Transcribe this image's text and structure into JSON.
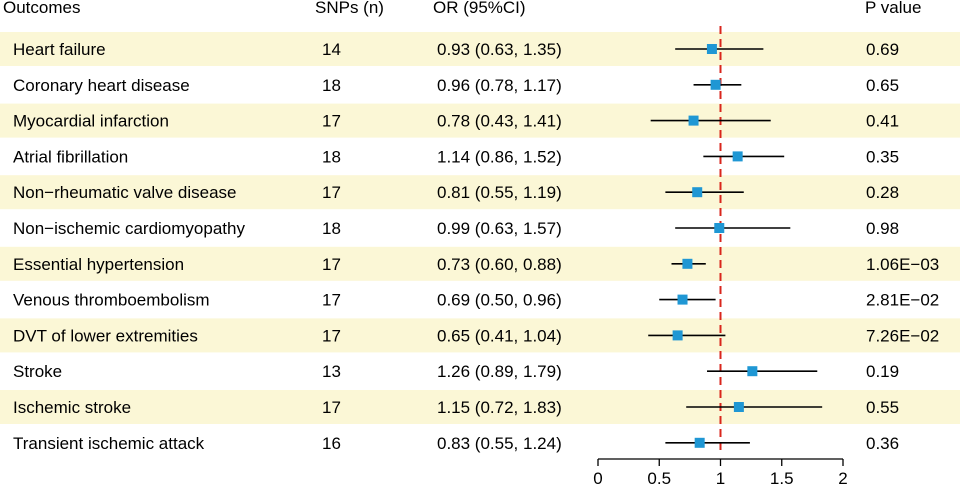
{
  "chart_data": {
    "type": "forest",
    "columns": {
      "outcome": "Outcomes",
      "snps": "SNPs (n)",
      "or_ci": "OR (95%CI)",
      "p_value": "P value"
    },
    "rows": [
      {
        "outcome": "Heart failure",
        "snps": "14",
        "or_ci": "0.93 (0.63, 1.35)",
        "p": "0.69",
        "or": 0.93,
        "lo": 0.63,
        "hi": 1.35
      },
      {
        "outcome": "Coronary heart disease",
        "snps": "18",
        "or_ci": "0.96 (0.78, 1.17)",
        "p": "0.65",
        "or": 0.96,
        "lo": 0.78,
        "hi": 1.17
      },
      {
        "outcome": "Myocardial infarction",
        "snps": "17",
        "or_ci": "0.78 (0.43, 1.41)",
        "p": "0.41",
        "or": 0.78,
        "lo": 0.43,
        "hi": 1.41
      },
      {
        "outcome": "Atrial fibrillation",
        "snps": "18",
        "or_ci": "1.14 (0.86, 1.52)",
        "p": "0.35",
        "or": 1.14,
        "lo": 0.86,
        "hi": 1.52
      },
      {
        "outcome": "Non−rheumatic valve disease",
        "snps": "17",
        "or_ci": "0.81 (0.55, 1.19)",
        "p": "0.28",
        "or": 0.81,
        "lo": 0.55,
        "hi": 1.19
      },
      {
        "outcome": "Non−ischemic cardiomyopathy",
        "snps": "18",
        "or_ci": "0.99 (0.63, 1.57)",
        "p": "0.98",
        "or": 0.99,
        "lo": 0.63,
        "hi": 1.57
      },
      {
        "outcome": "Essential hypertension",
        "snps": "17",
        "or_ci": "0.73 (0.60, 0.88)",
        "p": "1.06E−03",
        "or": 0.73,
        "lo": 0.6,
        "hi": 0.88
      },
      {
        "outcome": "Venous thromboembolism",
        "snps": "17",
        "or_ci": "0.69 (0.50, 0.96)",
        "p": "2.81E−02",
        "or": 0.69,
        "lo": 0.5,
        "hi": 0.96
      },
      {
        "outcome": "DVT of lower extremities",
        "snps": "17",
        "or_ci": "0.65 (0.41, 1.04)",
        "p": "7.26E−02",
        "or": 0.65,
        "lo": 0.41,
        "hi": 1.04
      },
      {
        "outcome": "Stroke",
        "snps": "13",
        "or_ci": "1.26 (0.89, 1.79)",
        "p": "0.19",
        "or": 1.26,
        "lo": 0.89,
        "hi": 1.79
      },
      {
        "outcome": "Ischemic stroke",
        "snps": "17",
        "or_ci": "1.15 (0.72, 1.83)",
        "p": "0.55",
        "or": 1.15,
        "lo": 0.72,
        "hi": 1.83
      },
      {
        "outcome": "Transient ischemic attack",
        "snps": "16",
        "or_ci": "0.83 (0.55, 1.24)",
        "p": "0.36",
        "or": 0.83,
        "lo": 0.55,
        "hi": 1.24
      }
    ],
    "x_axis": {
      "range": [
        0,
        2
      ],
      "ticks": [
        0,
        0.5,
        1,
        1.5,
        2
      ],
      "tick_labels": [
        "0",
        "0.5",
        "1",
        "1.5",
        "2"
      ]
    },
    "reference_line": 1,
    "colors": {
      "stripe": "#fbf7d6",
      "marker": "#1f97d4",
      "ci_line": "#000000",
      "reference_line": "#d9261c",
      "axis": "#000000"
    }
  }
}
